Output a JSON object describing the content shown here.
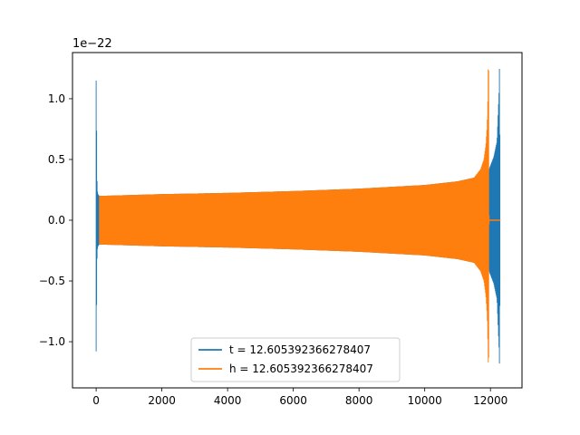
{
  "chart_data": {
    "type": "line",
    "title": "",
    "xlabel": "",
    "ylabel": "",
    "offset_label": "1e−22",
    "xlim": [
      -720,
      12960
    ],
    "ylim": [
      -1.38,
      1.38
    ],
    "xticks": [
      0,
      2000,
      4000,
      6000,
      8000,
      10000,
      12000
    ],
    "xtick_labels": [
      "0",
      "2000",
      "4000",
      "6000",
      "8000",
      "10000",
      "12000"
    ],
    "yticks": [
      -1.0,
      -0.5,
      0.0,
      0.5,
      1.0
    ],
    "ytick_labels": [
      "−1.0",
      "−0.5",
      "0.0",
      "0.5",
      "1.0"
    ],
    "grid": false,
    "legend_position": "lower center",
    "series": [
      {
        "name": "t = 12.605392366278407",
        "color": "#1f77b4",
        "envelope": {
          "x": [
            0,
            30,
            60,
            100,
            2000,
            4000,
            6000,
            8000,
            10000,
            11000,
            11500,
            11950,
            11960,
            12000,
            12100,
            12200,
            12260,
            12270,
            12280,
            12300
          ],
          "upper": [
            1.15,
            0.25,
            0.21,
            0.2,
            0.215,
            0.225,
            0.24,
            0.26,
            0.29,
            0.32,
            0.35,
            0.4,
            0.42,
            0.45,
            0.52,
            0.65,
            1.05,
            1.32,
            1.1,
            0.0
          ],
          "lower": [
            -1.08,
            -0.25,
            -0.21,
            -0.2,
            -0.215,
            -0.225,
            -0.24,
            -0.26,
            -0.29,
            -0.32,
            -0.35,
            -0.4,
            -0.42,
            -0.45,
            -0.52,
            -0.65,
            -1.05,
            -1.22,
            -1.1,
            0.0
          ]
        }
      },
      {
        "name": "h = 12.605392366278407",
        "color": "#ff7f0e",
        "envelope": {
          "x": [
            100,
            2000,
            4000,
            6000,
            8000,
            10000,
            11000,
            11500,
            11700,
            11800,
            11860,
            11900,
            11925,
            11935,
            11950,
            11960,
            12300
          ],
          "upper": [
            0.2,
            0.215,
            0.225,
            0.24,
            0.26,
            0.29,
            0.32,
            0.35,
            0.42,
            0.5,
            0.62,
            0.78,
            1.05,
            1.32,
            1.2,
            0.0,
            0.0
          ],
          "lower": [
            -0.2,
            -0.215,
            -0.225,
            -0.24,
            -0.26,
            -0.29,
            -0.32,
            -0.35,
            -0.42,
            -0.5,
            -0.62,
            -0.78,
            -1.05,
            -1.22,
            -1.1,
            0.0,
            0.0
          ]
        }
      }
    ]
  }
}
